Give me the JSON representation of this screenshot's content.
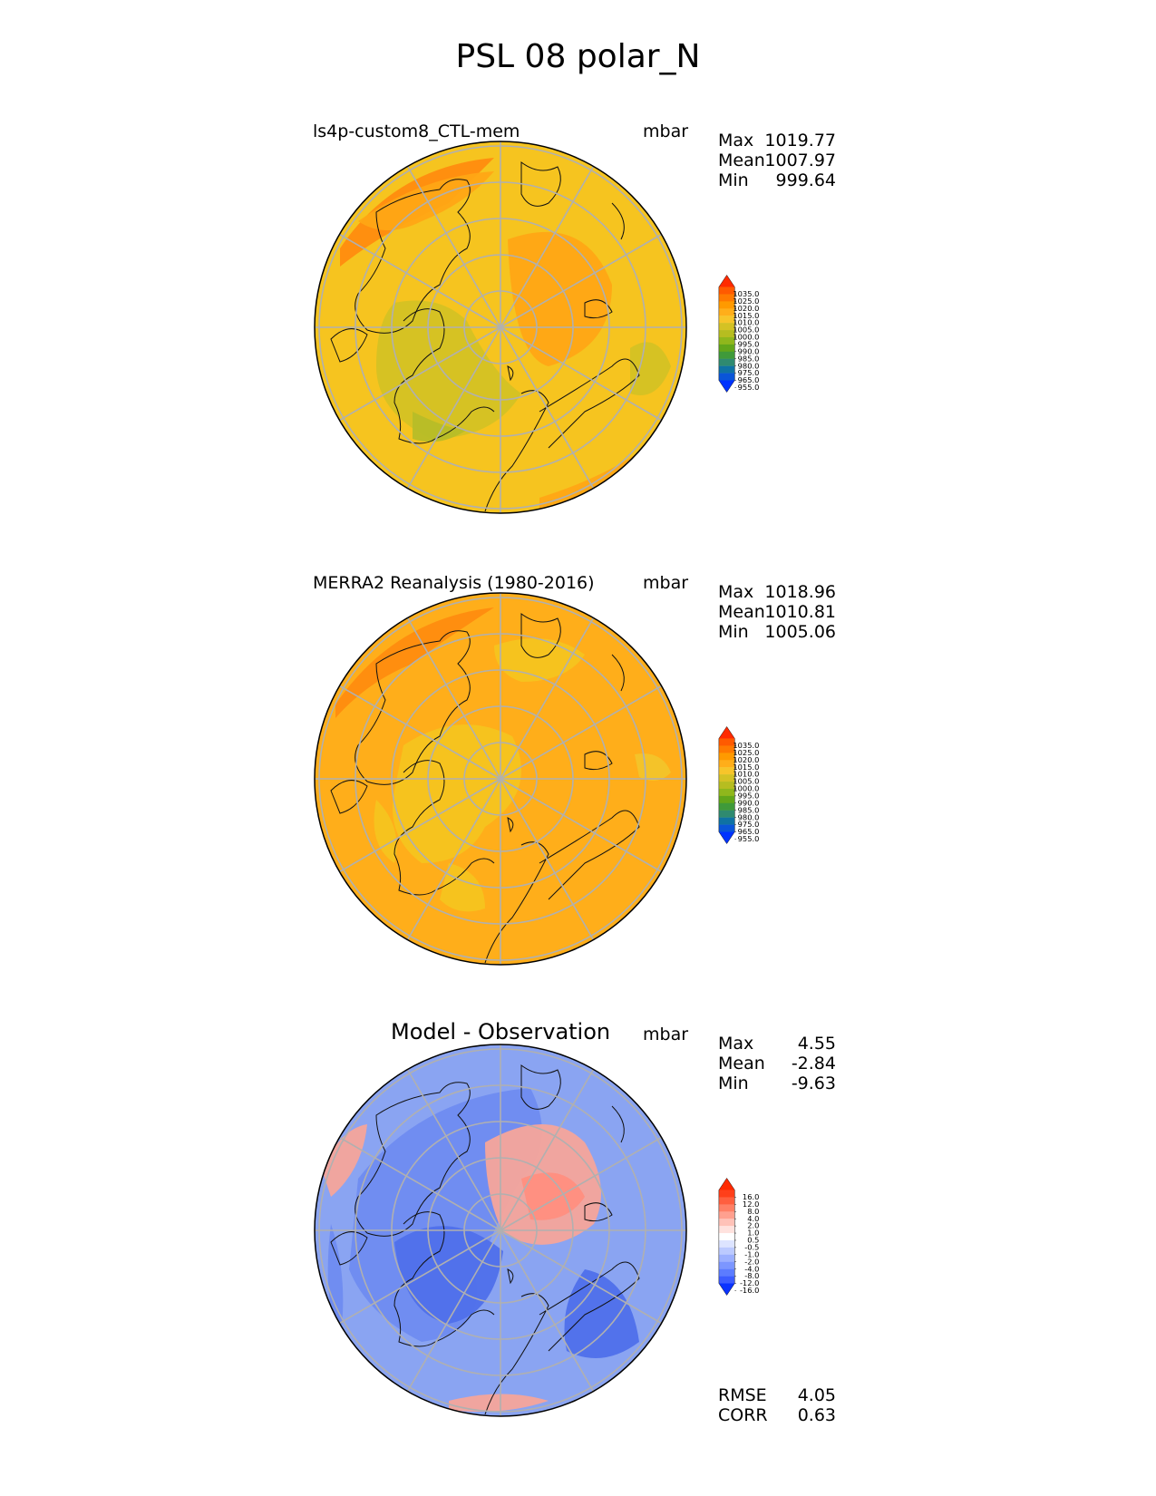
{
  "figure_title": "PSL 08 polar_N",
  "chart_data": [
    {
      "type": "heatmap",
      "projection": "north polar stereographic",
      "title": "ls4p-custom8_CTL-mem",
      "units": "mbar",
      "stats": [
        {
          "label": "Max",
          "value": "1019.77"
        },
        {
          "label": "Mean",
          "value": "1007.97"
        },
        {
          "label": "Min",
          "value": "999.64"
        }
      ],
      "colorbar": {
        "levels": [
          "1035.0",
          "1025.0",
          "1020.0",
          "1015.0",
          "1010.0",
          "1005.0",
          "1000.0",
          "995.0",
          "990.0",
          "985.0",
          "980.0",
          "975.0",
          "965.0",
          "955.0"
        ],
        "colors": [
          "#ff2a00",
          "#ff5a00",
          "#ff7a00",
          "#ff9a00",
          "#ffae1a",
          "#f7c52a",
          "#d4c224",
          "#b6bd20",
          "#8fb71c",
          "#62a61a",
          "#3f9a3a",
          "#2f8a70",
          "#0f72a4",
          "#0a55d8",
          "#0033ff"
        ]
      },
      "field_colors": {
        "base": "#f6c41f",
        "high": "#ffa615",
        "higher": "#ff8c0f",
        "low": "#d4c224",
        "lower": "#b7bd28"
      }
    },
    {
      "type": "heatmap",
      "projection": "north polar stereographic",
      "title": "MERRA2 Reanalysis (1980-2016)",
      "units": "mbar",
      "stats": [
        {
          "label": "Max",
          "value": "1018.96"
        },
        {
          "label": "Mean",
          "value": "1010.81"
        },
        {
          "label": "Min",
          "value": "1005.06"
        }
      ],
      "colorbar": {
        "levels": [
          "1035.0",
          "1025.0",
          "1020.0",
          "1015.0",
          "1010.0",
          "1005.0",
          "1000.0",
          "995.0",
          "990.0",
          "985.0",
          "980.0",
          "975.0",
          "965.0",
          "955.0"
        ],
        "colors": [
          "#ff2a00",
          "#ff5a00",
          "#ff7a00",
          "#ff9a00",
          "#ffae1a",
          "#f7c52a",
          "#d4c224",
          "#b6bd20",
          "#8fb71c",
          "#62a61a",
          "#3f9a3a",
          "#2f8a70",
          "#0f72a4",
          "#0a55d8",
          "#0033ff"
        ]
      },
      "field_colors": {
        "base": "#ffae1a",
        "high": "#ffa615",
        "higher": "#ff8c0f",
        "low": "#f6c41f",
        "lower": "#f3c42a"
      }
    },
    {
      "type": "heatmap",
      "projection": "north polar stereographic",
      "title": "Model - Observation",
      "units": "mbar",
      "stats": [
        {
          "label": "Max",
          "value": "4.55"
        },
        {
          "label": "Mean",
          "value": "-2.84"
        },
        {
          "label": "Min",
          "value": "-9.63"
        }
      ],
      "colorbar": {
        "levels": [
          "16.0",
          "12.0",
          "8.0",
          "4.0",
          "2.0",
          "1.0",
          "0.5",
          "-0.5",
          "-1.0",
          "-2.0",
          "-4.0",
          "-8.0",
          "-12.0",
          "-16.0"
        ],
        "colors": [
          "#ff2a00",
          "#ff3f1a",
          "#ff5f3f",
          "#ff8066",
          "#ffa08f",
          "#ffc2b8",
          "#ffe2de",
          "#ffffff",
          "#dde4ff",
          "#bccaff",
          "#9cb0ff",
          "#7c96ff",
          "#5c7cff",
          "#3c5cff",
          "#0a33ff"
        ]
      },
      "field_colors": {
        "base": "#8aa4f2",
        "high": "#f5a59a",
        "higher": "#ff8e80",
        "low": "#6f8cf0",
        "lower": "#4f70ea"
      },
      "extra_stats": [
        {
          "label": "RMSE",
          "value": "4.05"
        },
        {
          "label": "CORR",
          "value": "0.63"
        }
      ]
    }
  ]
}
